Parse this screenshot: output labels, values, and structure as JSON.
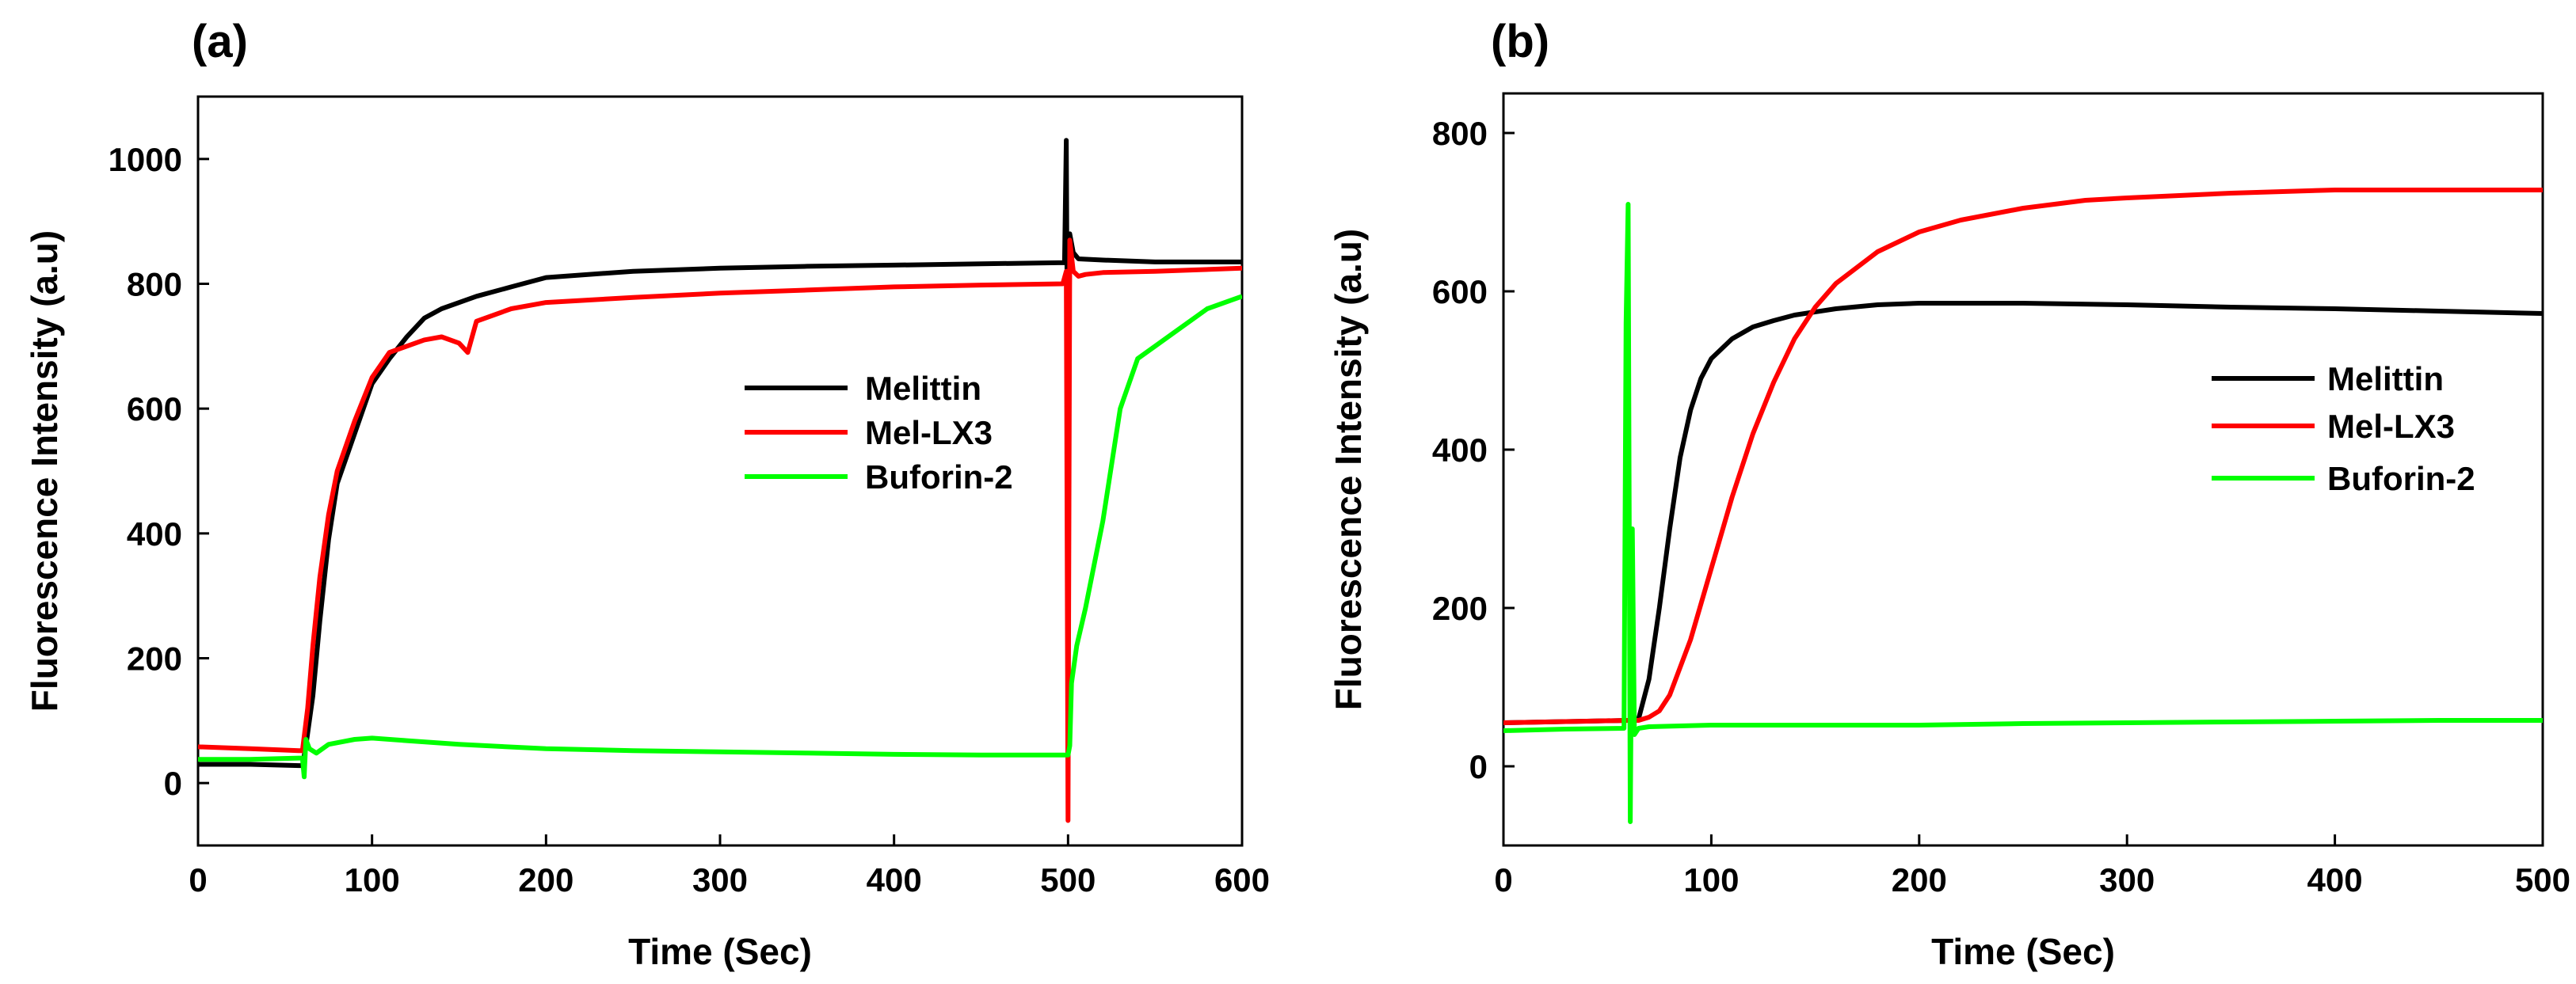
{
  "chart_data": [
    {
      "type": "line",
      "panel_label": "(a)",
      "title": "",
      "xlabel": "Time (Sec)",
      "ylabel": "Fluorescence Intensity (a.u)",
      "xlim": [
        0,
        600
      ],
      "ylim": [
        -100,
        1100
      ],
      "xticks": [
        0,
        100,
        200,
        300,
        400,
        500,
        600
      ],
      "yticks": [
        0,
        200,
        400,
        600,
        800,
        1000
      ],
      "legend_position": "center-right",
      "series": [
        {
          "name": "Melittin",
          "color": "#000000",
          "x": [
            0,
            30,
            58,
            60,
            62,
            66,
            70,
            75,
            80,
            90,
            100,
            110,
            120,
            130,
            140,
            160,
            180,
            200,
            250,
            300,
            350,
            400,
            450,
            498,
            499,
            500,
            501,
            503,
            506,
            520,
            550,
            600
          ],
          "y": [
            30,
            30,
            28,
            28,
            60,
            140,
            260,
            390,
            480,
            560,
            640,
            680,
            715,
            745,
            760,
            780,
            795,
            810,
            820,
            825,
            828,
            830,
            832,
            834,
            1030,
            500,
            880,
            850,
            840,
            838,
            835,
            835
          ]
        },
        {
          "name": "Mel-LX3",
          "color": "#ff0000",
          "x": [
            0,
            30,
            58,
            60,
            63,
            66,
            70,
            75,
            80,
            90,
            100,
            110,
            120,
            130,
            140,
            150,
            155,
            160,
            180,
            200,
            250,
            300,
            350,
            400,
            450,
            497,
            499,
            500,
            501,
            503,
            506,
            510,
            520,
            550,
            600
          ],
          "y": [
            58,
            55,
            52,
            52,
            120,
            220,
            330,
            430,
            500,
            580,
            650,
            690,
            700,
            710,
            715,
            705,
            690,
            740,
            760,
            770,
            778,
            785,
            790,
            795,
            798,
            800,
            820,
            -60,
            870,
            820,
            812,
            815,
            818,
            820,
            825
          ]
        },
        {
          "name": "Buforin-2",
          "color": "#00ff00",
          "x": [
            0,
            30,
            58,
            60,
            61,
            62,
            64,
            68,
            75,
            90,
            100,
            120,
            150,
            200,
            250,
            300,
            350,
            400,
            450,
            497,
            498,
            500,
            501,
            502,
            505,
            510,
            520,
            530,
            540,
            550,
            560,
            580,
            600
          ],
          "y": [
            38,
            38,
            40,
            40,
            10,
            70,
            55,
            48,
            62,
            70,
            72,
            68,
            62,
            55,
            52,
            50,
            48,
            46,
            45,
            45,
            45,
            45,
            60,
            160,
            220,
            280,
            420,
            600,
            680,
            700,
            720,
            760,
            780
          ]
        }
      ]
    },
    {
      "type": "line",
      "panel_label": "(b)",
      "title": "",
      "xlabel": "Time (Sec)",
      "ylabel": "Fluorescence Intensity (a.u)",
      "xlim": [
        0,
        500
      ],
      "ylim": [
        -100,
        850
      ],
      "xticks": [
        0,
        100,
        200,
        300,
        400,
        500
      ],
      "yticks": [
        0,
        200,
        400,
        600,
        800
      ],
      "legend_position": "center-right",
      "series": [
        {
          "name": "Melittin",
          "color": "#000000",
          "x": [
            0,
            20,
            40,
            60,
            65,
            70,
            75,
            80,
            85,
            90,
            95,
            100,
            110,
            120,
            130,
            140,
            160,
            180,
            200,
            250,
            300,
            350,
            400,
            450,
            500
          ],
          "y": [
            55,
            56,
            57,
            58,
            60,
            110,
            200,
            300,
            390,
            450,
            490,
            515,
            540,
            555,
            563,
            570,
            578,
            583,
            585,
            585,
            583,
            580,
            578,
            575,
            572
          ]
        },
        {
          "name": "Mel-LX3",
          "color": "#ff0000",
          "x": [
            0,
            20,
            40,
            60,
            65,
            70,
            75,
            80,
            90,
            100,
            110,
            120,
            130,
            140,
            150,
            160,
            180,
            200,
            220,
            250,
            280,
            300,
            350,
            400,
            450,
            500
          ],
          "y": [
            55,
            56,
            57,
            58,
            58,
            62,
            70,
            90,
            160,
            250,
            340,
            420,
            485,
            540,
            580,
            610,
            650,
            675,
            690,
            705,
            715,
            718,
            724,
            728,
            728,
            728
          ]
        },
        {
          "name": "Buforin-2",
          "color": "#00ff00",
          "x": [
            0,
            30,
            58,
            59,
            60,
            61,
            62,
            63,
            65,
            70,
            100,
            150,
            200,
            250,
            300,
            350,
            400,
            450,
            500
          ],
          "y": [
            45,
            47,
            48,
            560,
            710,
            -70,
            300,
            40,
            48,
            50,
            52,
            52,
            52,
            54,
            55,
            56,
            57,
            58,
            58
          ]
        }
      ]
    }
  ]
}
